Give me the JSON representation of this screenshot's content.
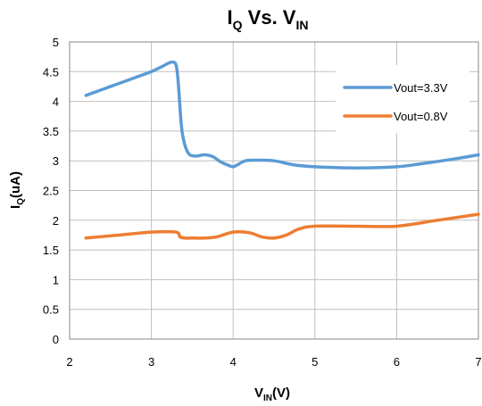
{
  "chart_data": {
    "type": "line",
    "title": {
      "main": "I",
      "sub": "Q",
      "mid": " Vs. V",
      "sub2": "IN"
    },
    "xlabel": {
      "main": "V",
      "sub": "IN",
      "tail": "(V)"
    },
    "ylabel": {
      "main": "I",
      "sub": "Q",
      "tail": "(uA)"
    },
    "xlim": [
      2,
      7
    ],
    "ylim": [
      0,
      5
    ],
    "x_ticks": [
      "2",
      "3",
      "4",
      "5",
      "6",
      "7"
    ],
    "y_ticks": [
      "0",
      "0.5",
      "1",
      "1.5",
      "2",
      "2.5",
      "3",
      "3.5",
      "4",
      "4.5",
      "5"
    ],
    "grid": true,
    "legend_position": "top-right",
    "series": [
      {
        "name": "Vout=3.3V",
        "color": "#5b9bd5",
        "x": [
          2.2,
          2.5,
          2.8,
          3.0,
          3.15,
          3.22,
          3.27,
          3.3,
          3.32,
          3.34,
          3.36,
          3.38,
          3.42,
          3.47,
          3.55,
          3.65,
          3.75,
          3.85,
          3.95,
          4.0,
          4.05,
          4.15,
          4.3,
          4.5,
          4.75,
          5.0,
          5.5,
          6.0,
          6.3,
          6.7,
          7.0
        ],
        "y": [
          4.1,
          4.25,
          4.4,
          4.5,
          4.6,
          4.65,
          4.66,
          4.62,
          4.45,
          4.1,
          3.7,
          3.45,
          3.22,
          3.1,
          3.08,
          3.1,
          3.07,
          2.98,
          2.92,
          2.9,
          2.93,
          3.0,
          3.01,
          3.0,
          2.93,
          2.9,
          2.88,
          2.9,
          2.95,
          3.03,
          3.1
        ]
      },
      {
        "name": "Vout=0.8V",
        "color": "#ed7d31",
        "x": [
          2.2,
          2.6,
          3.0,
          3.3,
          3.35,
          3.4,
          3.5,
          3.65,
          3.8,
          4.0,
          4.2,
          4.35,
          4.5,
          4.65,
          4.8,
          5.0,
          5.5,
          6.0,
          6.5,
          7.0
        ],
        "y": [
          1.7,
          1.75,
          1.8,
          1.8,
          1.72,
          1.7,
          1.7,
          1.7,
          1.72,
          1.8,
          1.79,
          1.72,
          1.7,
          1.75,
          1.85,
          1.9,
          1.9,
          1.9,
          2.0,
          2.1
        ]
      }
    ]
  }
}
